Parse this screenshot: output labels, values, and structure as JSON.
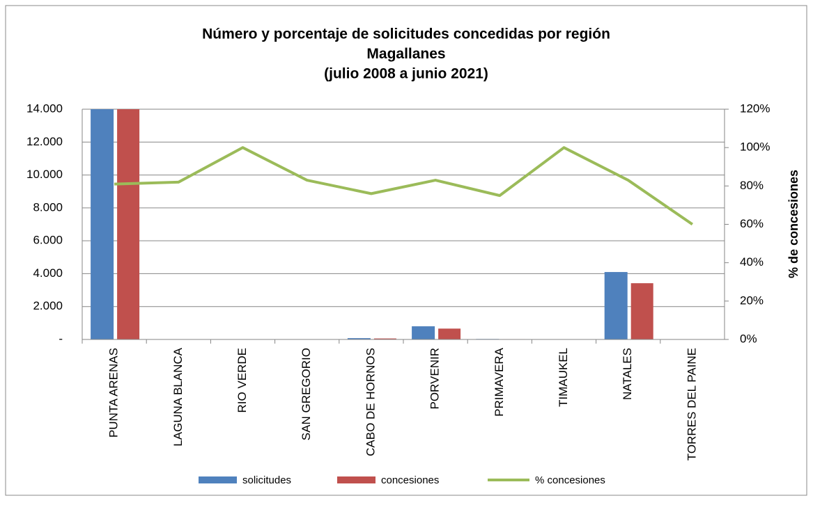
{
  "chart_data": {
    "type": "bar_line",
    "title": [
      "Número y porcentaje de solicitudes concedidas por región",
      "Magallanes",
      "(julio 2008 a junio 2021)"
    ],
    "categories": [
      "PUNTA ARENAS",
      "LAGUNA BLANCA",
      "RIO VERDE",
      "SAN GREGORIO",
      "CABO DE HORNOS",
      "PORVENIR",
      "PRIMAVERA",
      "TIMAUKEL",
      "NATALES",
      "TORRES DEL PAINE"
    ],
    "series": [
      {
        "name": "solicitudes",
        "color": "#4f81bd",
        "type": "bar",
        "values": [
          14000,
          5,
          10,
          20,
          80,
          800,
          30,
          5,
          4100,
          5
        ]
      },
      {
        "name": "concesiones",
        "color": "#c0504d",
        "type": "bar",
        "values": [
          14000,
          4,
          10,
          17,
          60,
          660,
          22,
          5,
          3420,
          3
        ]
      },
      {
        "name": "% concesiones",
        "color": "#9bbb59",
        "type": "line",
        "axis": "y2",
        "values": [
          81,
          82,
          100,
          83,
          76,
          83,
          75,
          100,
          83,
          60
        ]
      }
    ],
    "ylim": [
      0,
      14000
    ],
    "yticks": [
      {
        "value": 0,
        "label": "-"
      },
      {
        "value": 2000,
        "label": "2.000"
      },
      {
        "value": 4000,
        "label": "4.000"
      },
      {
        "value": 6000,
        "label": "6.000"
      },
      {
        "value": 8000,
        "label": "8.000"
      },
      {
        "value": 10000,
        "label": "10.000"
      },
      {
        "value": 12000,
        "label": "12.000"
      },
      {
        "value": 14000,
        "label": "14.000"
      }
    ],
    "y2lim": [
      0,
      120
    ],
    "y2ticks": [
      {
        "value": 0,
        "label": "0%"
      },
      {
        "value": 20,
        "label": "20%"
      },
      {
        "value": 40,
        "label": "40%"
      },
      {
        "value": 60,
        "label": "60%"
      },
      {
        "value": 80,
        "label": "80%"
      },
      {
        "value": 100,
        "label": "100%"
      },
      {
        "value": 120,
        "label": "120%"
      }
    ],
    "y2label": "% de concesiones",
    "grid": true,
    "legend": "bottom"
  }
}
